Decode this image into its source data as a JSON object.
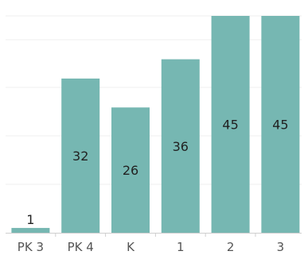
{
  "chart_data": {
    "type": "bar",
    "categories": [
      "PK 3",
      "PK 4",
      "K",
      "1",
      "2",
      "3"
    ],
    "values": [
      1,
      32,
      26,
      36,
      45,
      45
    ],
    "data_labels": [
      "1",
      "32",
      "26",
      "36",
      "45",
      "45"
    ],
    "title": "",
    "xlabel": "",
    "ylabel": "",
    "ylim": [
      0,
      45
    ],
    "grid": true,
    "legend": "none",
    "bar_color": "#76b7b2",
    "grid_color": "#efefef",
    "axis_color": "#cfcfcf"
  }
}
